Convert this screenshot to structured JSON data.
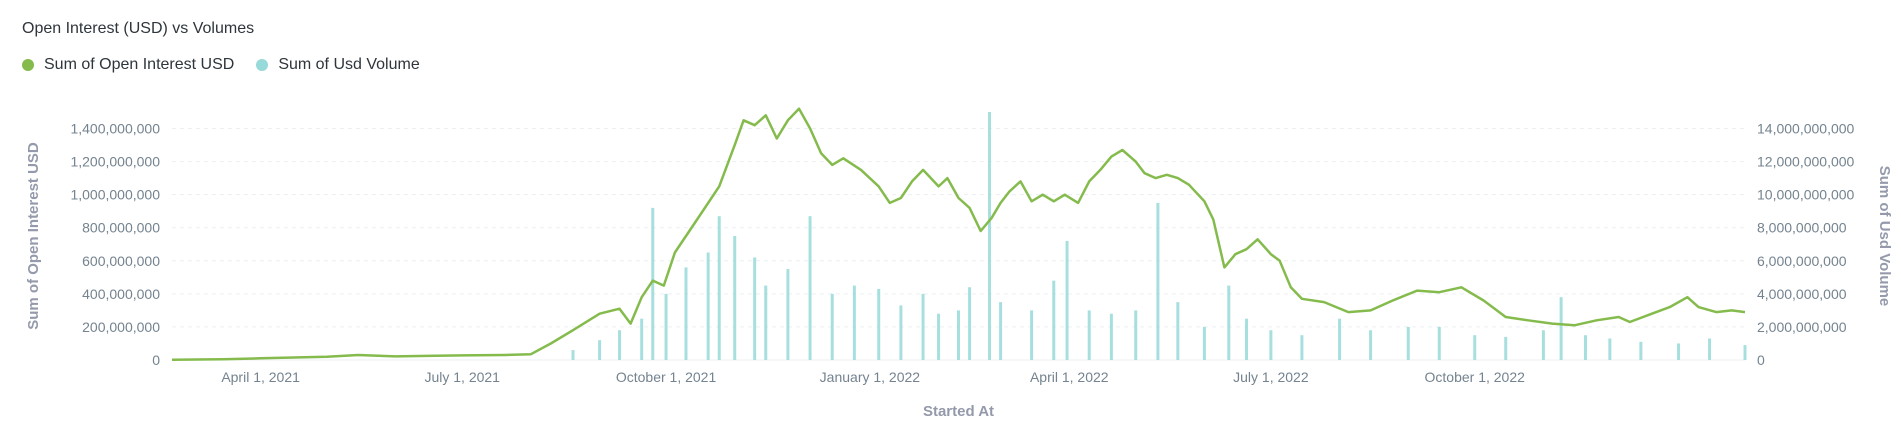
{
  "chart_title": "Open Interest (USD) vs Volumes",
  "legend": [
    {
      "label": "Sum of Open Interest USD",
      "color": "#84bb4c"
    },
    {
      "label": "Sum of Usd Volume",
      "color": "#98d9d9"
    }
  ],
  "chart_data": {
    "type": "line",
    "title": "Open Interest (USD) vs Volumes",
    "xlabel": "Started At",
    "ylabel": "Sum of Open Interest USD",
    "y2label": "Sum of Usd Volume",
    "xlim": [
      "2021-02-20",
      "2023-01-31"
    ],
    "ylim": [
      0,
      1500000000
    ],
    "y2lim": [
      0,
      15000000000
    ],
    "x_ticks": [
      {
        "date": "2021-04-01",
        "label": "April 1, 2021"
      },
      {
        "date": "2021-07-01",
        "label": "July 1, 2021"
      },
      {
        "date": "2021-10-01",
        "label": "October 1, 2021"
      },
      {
        "date": "2022-01-01",
        "label": "January 1, 2022"
      },
      {
        "date": "2022-04-01",
        "label": "April 1, 2022"
      },
      {
        "date": "2022-07-01",
        "label": "July 1, 2022"
      },
      {
        "date": "2022-10-01",
        "label": "October 1, 2022"
      }
    ],
    "y_ticks": [
      {
        "value": 0,
        "label": "0"
      },
      {
        "value": 200000000,
        "label": "200,000,000"
      },
      {
        "value": 400000000,
        "label": "400,000,000"
      },
      {
        "value": 600000000,
        "label": "600,000,000"
      },
      {
        "value": 800000000,
        "label": "800,000,000"
      },
      {
        "value": 1000000000,
        "label": "1,000,000,000"
      },
      {
        "value": 1200000000,
        "label": "1,200,000,000"
      },
      {
        "value": 1400000000,
        "label": "1,400,000,000"
      }
    ],
    "y2_ticks": [
      {
        "value": 0,
        "label": "0"
      },
      {
        "value": 2000000000,
        "label": "2,000,000,000"
      },
      {
        "value": 4000000000,
        "label": "4,000,000,000"
      },
      {
        "value": 6000000000,
        "label": "6,000,000,000"
      },
      {
        "value": 8000000000,
        "label": "8,000,000,000"
      },
      {
        "value": 10000000000,
        "label": "10,000,000,000"
      },
      {
        "value": 12000000000,
        "label": "12,000,000,000"
      },
      {
        "value": 14000000000,
        "label": "14,000,000,000"
      }
    ],
    "grid": true,
    "series": [
      {
        "name": "Sum of Open Interest USD",
        "axis": "left",
        "kind": "line",
        "color": "#84bb4c",
        "points": [
          [
            "2021-02-20",
            2000000
          ],
          [
            "2021-03-15",
            4000000
          ],
          [
            "2021-04-01",
            10000000
          ],
          [
            "2021-05-01",
            20000000
          ],
          [
            "2021-05-15",
            30000000
          ],
          [
            "2021-06-01",
            22000000
          ],
          [
            "2021-06-15",
            25000000
          ],
          [
            "2021-07-01",
            28000000
          ],
          [
            "2021-07-20",
            30000000
          ],
          [
            "2021-08-01",
            35000000
          ],
          [
            "2021-08-10",
            100000000
          ],
          [
            "2021-08-20",
            180000000
          ],
          [
            "2021-09-01",
            280000000
          ],
          [
            "2021-09-10",
            310000000
          ],
          [
            "2021-09-15",
            220000000
          ],
          [
            "2021-09-20",
            380000000
          ],
          [
            "2021-09-25",
            480000000
          ],
          [
            "2021-09-30",
            450000000
          ],
          [
            "2021-10-05",
            650000000
          ],
          [
            "2021-10-15",
            850000000
          ],
          [
            "2021-10-25",
            1050000000
          ],
          [
            "2021-11-01",
            1300000000
          ],
          [
            "2021-11-05",
            1450000000
          ],
          [
            "2021-11-10",
            1420000000
          ],
          [
            "2021-11-15",
            1480000000
          ],
          [
            "2021-11-20",
            1340000000
          ],
          [
            "2021-11-25",
            1450000000
          ],
          [
            "2021-11-30",
            1520000000
          ],
          [
            "2021-12-05",
            1400000000
          ],
          [
            "2021-12-10",
            1250000000
          ],
          [
            "2021-12-15",
            1180000000
          ],
          [
            "2021-12-20",
            1220000000
          ],
          [
            "2021-12-28",
            1150000000
          ],
          [
            "2022-01-05",
            1050000000
          ],
          [
            "2022-01-10",
            950000000
          ],
          [
            "2022-01-15",
            980000000
          ],
          [
            "2022-01-20",
            1080000000
          ],
          [
            "2022-01-25",
            1150000000
          ],
          [
            "2022-02-01",
            1050000000
          ],
          [
            "2022-02-05",
            1100000000
          ],
          [
            "2022-02-10",
            980000000
          ],
          [
            "2022-02-15",
            920000000
          ],
          [
            "2022-02-20",
            780000000
          ],
          [
            "2022-02-25",
            860000000
          ],
          [
            "2022-03-01",
            950000000
          ],
          [
            "2022-03-05",
            1020000000
          ],
          [
            "2022-03-10",
            1080000000
          ],
          [
            "2022-03-15",
            960000000
          ],
          [
            "2022-03-20",
            1000000000
          ],
          [
            "2022-03-25",
            960000000
          ],
          [
            "2022-03-30",
            1000000000
          ],
          [
            "2022-04-05",
            950000000
          ],
          [
            "2022-04-10",
            1080000000
          ],
          [
            "2022-04-15",
            1150000000
          ],
          [
            "2022-04-20",
            1230000000
          ],
          [
            "2022-04-25",
            1270000000
          ],
          [
            "2022-05-01",
            1200000000
          ],
          [
            "2022-05-05",
            1130000000
          ],
          [
            "2022-05-10",
            1100000000
          ],
          [
            "2022-05-15",
            1120000000
          ],
          [
            "2022-05-20",
            1100000000
          ],
          [
            "2022-05-25",
            1060000000
          ],
          [
            "2022-06-01",
            960000000
          ],
          [
            "2022-06-05",
            850000000
          ],
          [
            "2022-06-10",
            560000000
          ],
          [
            "2022-06-15",
            640000000
          ],
          [
            "2022-06-20",
            670000000
          ],
          [
            "2022-06-25",
            730000000
          ],
          [
            "2022-07-01",
            640000000
          ],
          [
            "2022-07-05",
            600000000
          ],
          [
            "2022-07-10",
            440000000
          ],
          [
            "2022-07-15",
            370000000
          ],
          [
            "2022-07-25",
            350000000
          ],
          [
            "2022-08-05",
            290000000
          ],
          [
            "2022-08-15",
            300000000
          ],
          [
            "2022-08-25",
            360000000
          ],
          [
            "2022-09-05",
            420000000
          ],
          [
            "2022-09-15",
            410000000
          ],
          [
            "2022-09-25",
            440000000
          ],
          [
            "2022-10-05",
            360000000
          ],
          [
            "2022-10-15",
            260000000
          ],
          [
            "2022-10-25",
            240000000
          ],
          [
            "2022-11-05",
            220000000
          ],
          [
            "2022-11-15",
            210000000
          ],
          [
            "2022-11-25",
            240000000
          ],
          [
            "2022-12-05",
            260000000
          ],
          [
            "2022-12-10",
            230000000
          ],
          [
            "2022-12-20",
            280000000
          ],
          [
            "2022-12-28",
            320000000
          ],
          [
            "2023-01-05",
            380000000
          ],
          [
            "2023-01-10",
            320000000
          ],
          [
            "2023-01-18",
            290000000
          ],
          [
            "2023-01-25",
            300000000
          ],
          [
            "2023-01-31",
            290000000
          ]
        ]
      },
      {
        "name": "Sum of Usd Volume",
        "axis": "right",
        "kind": "bar",
        "color": "#98d9d9",
        "points": [
          [
            "2021-08-20",
            600000000
          ],
          [
            "2021-09-01",
            1200000000
          ],
          [
            "2021-09-10",
            1800000000
          ],
          [
            "2021-09-20",
            2500000000
          ],
          [
            "2021-09-25",
            9200000000
          ],
          [
            "2021-10-01",
            4000000000
          ],
          [
            "2021-10-10",
            5600000000
          ],
          [
            "2021-10-20",
            6500000000
          ],
          [
            "2021-10-25",
            8700000000
          ],
          [
            "2021-11-01",
            7500000000
          ],
          [
            "2021-11-10",
            6200000000
          ],
          [
            "2021-11-15",
            4500000000
          ],
          [
            "2021-11-25",
            5500000000
          ],
          [
            "2021-12-05",
            8700000000
          ],
          [
            "2021-12-15",
            4000000000
          ],
          [
            "2021-12-25",
            4500000000
          ],
          [
            "2022-01-05",
            4300000000
          ],
          [
            "2022-01-15",
            3300000000
          ],
          [
            "2022-01-25",
            4000000000
          ],
          [
            "2022-02-01",
            2800000000
          ],
          [
            "2022-02-10",
            3000000000
          ],
          [
            "2022-02-15",
            4400000000
          ],
          [
            "2022-02-24",
            15000000000
          ],
          [
            "2022-03-01",
            3500000000
          ],
          [
            "2022-03-15",
            3000000000
          ],
          [
            "2022-03-25",
            4800000000
          ],
          [
            "2022-03-31",
            7200000000
          ],
          [
            "2022-04-10",
            3000000000
          ],
          [
            "2022-04-20",
            2800000000
          ],
          [
            "2022-05-01",
            3000000000
          ],
          [
            "2022-05-11",
            9500000000
          ],
          [
            "2022-05-20",
            3500000000
          ],
          [
            "2022-06-01",
            2000000000
          ],
          [
            "2022-06-12",
            4500000000
          ],
          [
            "2022-06-20",
            2500000000
          ],
          [
            "2022-07-01",
            1800000000
          ],
          [
            "2022-07-15",
            1500000000
          ],
          [
            "2022-08-01",
            2500000000
          ],
          [
            "2022-08-15",
            1800000000
          ],
          [
            "2022-09-01",
            2000000000
          ],
          [
            "2022-09-15",
            2000000000
          ],
          [
            "2022-10-01",
            1500000000
          ],
          [
            "2022-10-15",
            1400000000
          ],
          [
            "2022-11-01",
            1800000000
          ],
          [
            "2022-11-09",
            3800000000
          ],
          [
            "2022-11-20",
            1500000000
          ],
          [
            "2022-12-01",
            1300000000
          ],
          [
            "2022-12-15",
            1100000000
          ],
          [
            "2023-01-01",
            1000000000
          ],
          [
            "2023-01-15",
            1300000000
          ],
          [
            "2023-01-31",
            900000000
          ]
        ]
      }
    ]
  }
}
